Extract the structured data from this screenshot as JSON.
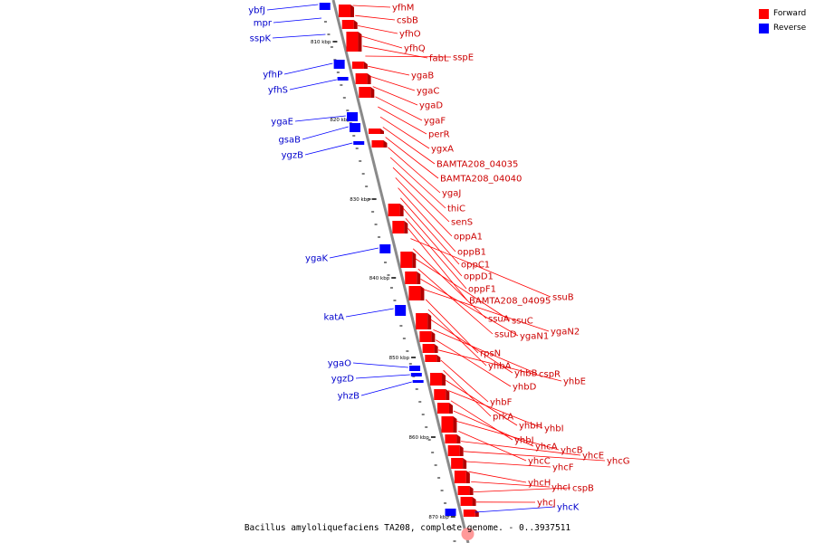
{
  "legend": {
    "forward_label": "Forward",
    "reverse_label": "Reverse",
    "forward_color": "#ff0000",
    "reverse_color": "#0000ff"
  },
  "caption": "Bacillus amyloliquefaciens TA208, complete genome. - 0..3937511",
  "axis_ticks": [
    "810 kbp",
    "820 kbp",
    "830 kbp",
    "840 kbp",
    "850 kbp",
    "860 kbp",
    "870 kbp"
  ],
  "forward_labels": [
    "yfhM",
    "csbB",
    "yfhO",
    "yfhQ",
    "fabL",
    "sspE",
    "ygaB",
    "ygaC",
    "ygaD",
    "ygaF",
    "perR",
    "ygxA",
    "BAMTA208_04035",
    "BAMTA208_04040",
    "ygaJ",
    "thiC",
    "senS",
    "oppA1",
    "oppB1",
    "oppC1",
    "oppD1",
    "oppF1",
    "BAMTA208_04095",
    "ssuB",
    "ssuA",
    "ssuC",
    "ssuD",
    "ygaN1",
    "ygaN2",
    "rpsN",
    "yhbA",
    "yhbB",
    "cspR",
    "yhbD",
    "yhbE",
    "yhbF",
    "prkA",
    "yhbH",
    "yhbI",
    "yhbJ",
    "yhcA",
    "yhcB",
    "yhcC",
    "yhcE",
    "yhcG",
    "yhcF",
    "yhcH",
    "yhcI",
    "cspB",
    "yhcJ"
  ],
  "reverse_labels": [
    "ybfJ",
    "mpr",
    "sspK",
    "yfhP",
    "yfhS",
    "ygaE",
    "gsaB",
    "ygzB",
    "ygaK",
    "katA",
    "ygaO",
    "ygzD",
    "yhzB",
    "yhcK"
  ]
}
